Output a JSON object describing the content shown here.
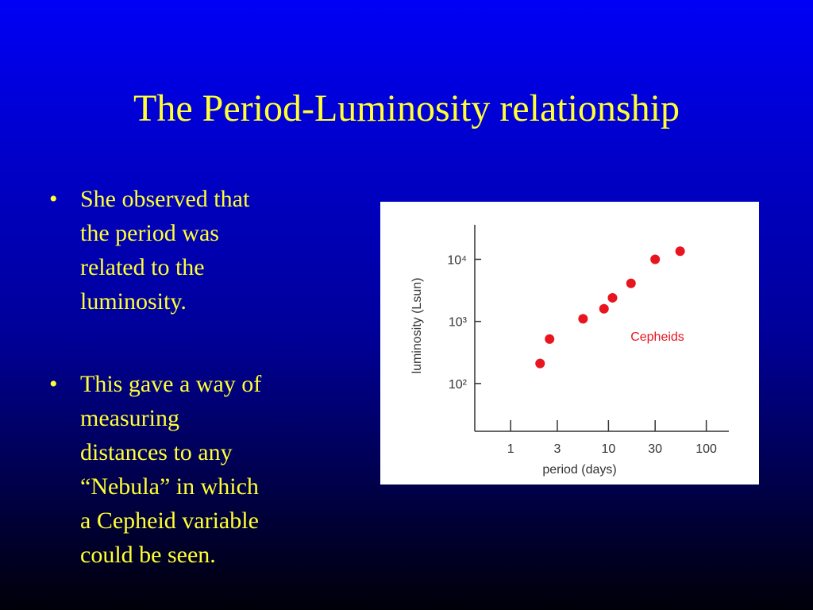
{
  "title": "The Period-Luminosity relationship",
  "bullets": [
    [
      "She observed that",
      "the period was",
      "related to the",
      "luminosity."
    ],
    [
      "This gave a way of",
      "measuring",
      "distances to any",
      "“Nebula” in which",
      "a Cepheid variable",
      "could be seen."
    ]
  ],
  "chart_data": {
    "type": "scatter",
    "x_label": "period  (days)",
    "y_label": "luminosity (Lsun)",
    "annotation": "Cepheids",
    "x_scale": "log",
    "y_scale": "log",
    "xlim": [
      0.43,
      170
    ],
    "ylim": [
      17,
      36000
    ],
    "xticks": [
      1,
      3,
      10,
      30,
      100
    ],
    "yticks": [
      {
        "value": 100,
        "label": "10²"
      },
      {
        "value": 1000,
        "label": "10³"
      },
      {
        "value": 10000,
        "label": "10⁴"
      }
    ],
    "series": [
      {
        "name": "Cepheids",
        "color": "#e8141e",
        "x": [
          2,
          2.5,
          5.5,
          9,
          11,
          17,
          30,
          54
        ],
        "values": [
          210,
          520,
          1100,
          1600,
          2400,
          4100,
          10000,
          13500
        ]
      }
    ]
  }
}
